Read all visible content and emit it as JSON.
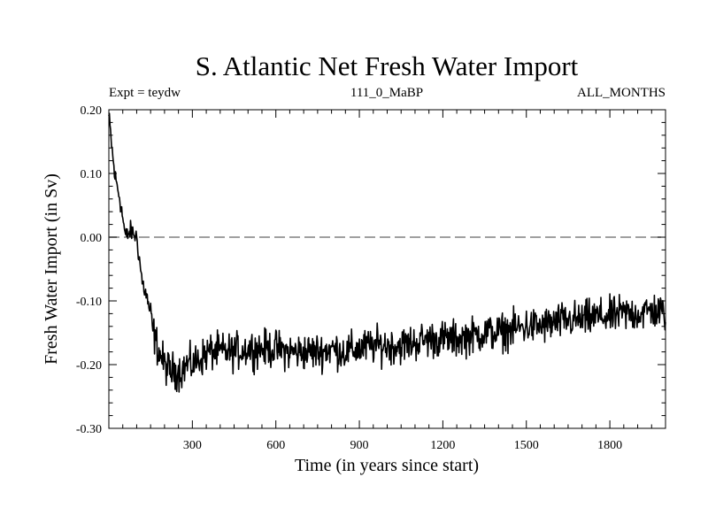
{
  "chart_data": {
    "type": "line",
    "title": "S. Atlantic Net Fresh Water Import",
    "subtitle_left": "Expt = teydw",
    "subtitle_center": "111_0_MaBP",
    "subtitle_right": "ALL_MONTHS",
    "xlabel": "Time (in years since start)",
    "ylabel": "Fresh Water Import (in Sv)",
    "xlim": [
      0,
      2000
    ],
    "ylim": [
      -0.3,
      0.2
    ],
    "xticks": [
      300,
      600,
      900,
      1200,
      1500,
      1800
    ],
    "xtick_labels": [
      "300",
      "600",
      "900",
      "1200",
      "1500",
      "1800"
    ],
    "yticks": [
      0.2,
      0.1,
      0.0,
      -0.1,
      -0.2,
      -0.3
    ],
    "ytick_labels": [
      "0.20",
      "0.10",
      "0.00",
      "-0.10",
      "-0.20",
      "-0.30"
    ],
    "reference_line": {
      "y": 0.0,
      "style": "dashed",
      "color": "#808080"
    },
    "line_color": "#000000",
    "series": [
      {
        "name": "Net fresh water import",
        "x": [
          0,
          20,
          40,
          60,
          80,
          100,
          120,
          140,
          160,
          180,
          200,
          220,
          240,
          260,
          280,
          300,
          330,
          360,
          400,
          450,
          500,
          550,
          600,
          650,
          700,
          750,
          800,
          850,
          900,
          950,
          1000,
          1050,
          1100,
          1150,
          1200,
          1250,
          1300,
          1350,
          1400,
          1450,
          1500,
          1550,
          1600,
          1650,
          1700,
          1750,
          1800,
          1850,
          1900,
          1950,
          2000
        ],
        "y": [
          0.19,
          0.1,
          0.06,
          0.0,
          0.01,
          0.0,
          -0.07,
          -0.1,
          -0.15,
          -0.18,
          -0.2,
          -0.21,
          -0.21,
          -0.21,
          -0.2,
          -0.2,
          -0.19,
          -0.18,
          -0.18,
          -0.18,
          -0.175,
          -0.175,
          -0.175,
          -0.18,
          -0.18,
          -0.18,
          -0.175,
          -0.18,
          -0.175,
          -0.17,
          -0.17,
          -0.17,
          -0.165,
          -0.16,
          -0.16,
          -0.16,
          -0.155,
          -0.15,
          -0.15,
          -0.145,
          -0.14,
          -0.14,
          -0.135,
          -0.13,
          -0.13,
          -0.125,
          -0.125,
          -0.12,
          -0.12,
          -0.115,
          -0.12
        ]
      }
    ]
  }
}
